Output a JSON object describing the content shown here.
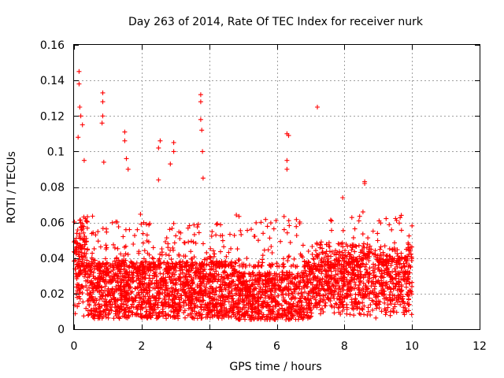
{
  "chart_data": {
    "type": "scatter",
    "title": "Day 263 of 2014, Rate Of TEC Index for receiver nurk",
    "xlabel": "GPS time / hours",
    "ylabel": "ROTI / TECUs",
    "xlim": [
      0,
      12
    ],
    "ylim": [
      0,
      0.16
    ],
    "xticks": [
      0,
      2,
      4,
      6,
      8,
      10,
      12
    ],
    "yticks": [
      0,
      0.02,
      0.04,
      0.06,
      0.08,
      0.1,
      0.12,
      0.14,
      0.16
    ],
    "xtick_labels": [
      "0",
      "2",
      "4",
      "6",
      "8",
      "10",
      "12"
    ],
    "ytick_labels": [
      "0",
      "0.02",
      "0.04",
      "0.06",
      "0.08",
      "0.1",
      "0.12",
      "0.14",
      "0.16"
    ],
    "grid": true,
    "marker": "+",
    "series": [
      {
        "name": "ROTI",
        "color": "#ff0000",
        "x_range": [
          0,
          10
        ],
        "typical_range": [
          0.005,
          0.04
        ],
        "values_estimated": true,
        "notable_points": [
          {
            "x": 0.15,
            "y": 0.145
          },
          {
            "x": 0.15,
            "y": 0.138
          },
          {
            "x": 0.17,
            "y": 0.125
          },
          {
            "x": 0.2,
            "y": 0.12
          },
          {
            "x": 0.25,
            "y": 0.115
          },
          {
            "x": 0.12,
            "y": 0.108
          },
          {
            "x": 0.3,
            "y": 0.095
          },
          {
            "x": 0.85,
            "y": 0.133
          },
          {
            "x": 0.85,
            "y": 0.128
          },
          {
            "x": 0.85,
            "y": 0.12
          },
          {
            "x": 0.83,
            "y": 0.116
          },
          {
            "x": 0.88,
            "y": 0.094
          },
          {
            "x": 1.5,
            "y": 0.111
          },
          {
            "x": 1.5,
            "y": 0.106
          },
          {
            "x": 1.55,
            "y": 0.096
          },
          {
            "x": 1.6,
            "y": 0.09
          },
          {
            "x": 2.55,
            "y": 0.106
          },
          {
            "x": 2.5,
            "y": 0.102
          },
          {
            "x": 2.5,
            "y": 0.084
          },
          {
            "x": 2.95,
            "y": 0.105
          },
          {
            "x": 2.95,
            "y": 0.1
          },
          {
            "x": 2.85,
            "y": 0.093
          },
          {
            "x": 3.75,
            "y": 0.132
          },
          {
            "x": 3.75,
            "y": 0.128
          },
          {
            "x": 3.75,
            "y": 0.118
          },
          {
            "x": 3.78,
            "y": 0.112
          },
          {
            "x": 3.8,
            "y": 0.1
          },
          {
            "x": 3.82,
            "y": 0.085
          },
          {
            "x": 6.3,
            "y": 0.11
          },
          {
            "x": 6.35,
            "y": 0.109
          },
          {
            "x": 6.3,
            "y": 0.095
          },
          {
            "x": 6.3,
            "y": 0.09
          },
          {
            "x": 7.2,
            "y": 0.125
          },
          {
            "x": 8.6,
            "y": 0.083
          },
          {
            "x": 8.6,
            "y": 0.082
          },
          {
            "x": 7.95,
            "y": 0.074
          },
          {
            "x": 8.55,
            "y": 0.066
          }
        ]
      }
    ]
  }
}
